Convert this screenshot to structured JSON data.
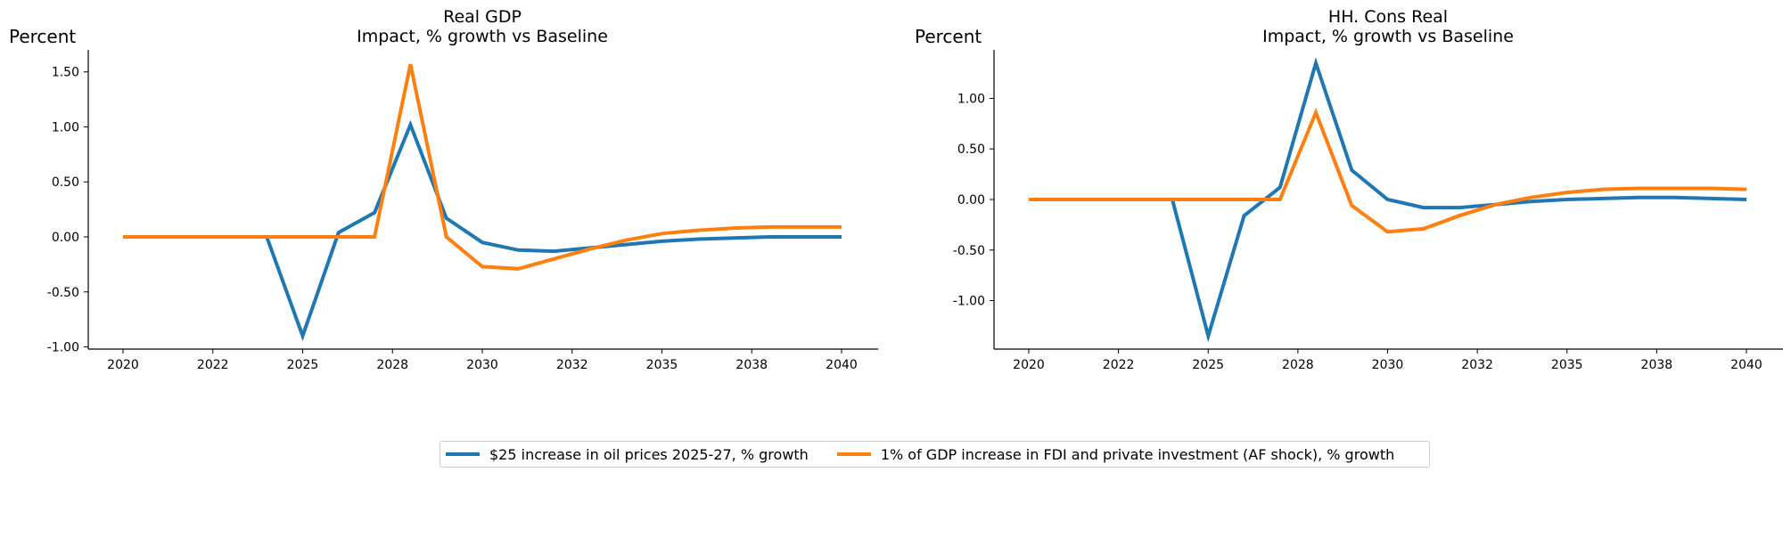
{
  "colors": {
    "series_0": "#1f77b4",
    "series_1": "#ff7f0e"
  },
  "legend": [
    "$25 increase in oil prices 2025-27, % growth",
    "1% of GDP increase in FDI and private investment (AF shock), % growth"
  ],
  "chart_data": [
    {
      "type": "line",
      "title": "Real GDP",
      "subtitle": "Impact, % growth vs Baseline",
      "ylabel": "Percent",
      "xlabel": "",
      "x_range": [
        2020,
        2040
      ],
      "x_ticks": [
        "2020",
        "2022",
        "2025",
        "2028",
        "2030",
        "2032",
        "2035",
        "2038",
        "2040"
      ],
      "y_ticks": [
        "-1.00",
        "-0.50",
        "0.00",
        "0.50",
        "1.00",
        "1.50"
      ],
      "y_tick_values": [
        -1.0,
        -0.5,
        0.0,
        0.5,
        1.0,
        1.5
      ],
      "ylim": [
        -1.02,
        1.7
      ],
      "grid": false,
      "x": [
        2020,
        2021,
        2022,
        2023,
        2024,
        2025,
        2026,
        2027,
        2028,
        2029,
        2030,
        2031,
        2032,
        2033,
        2034,
        2035,
        2036,
        2037,
        2038,
        2039,
        2040
      ],
      "series": [
        {
          "name": "$25 increase in oil prices 2025-27, % growth",
          "values": [
            0,
            0,
            0,
            0,
            0,
            -0.9,
            0.04,
            0.22,
            1.02,
            0.17,
            -0.05,
            -0.12,
            -0.13,
            -0.1,
            -0.07,
            -0.04,
            -0.02,
            -0.01,
            0.0,
            0.0,
            0.0
          ]
        },
        {
          "name": "1% of GDP increase in FDI and private investment (AF shock), % growth",
          "values": [
            0,
            0,
            0,
            0,
            0,
            0,
            0,
            0,
            1.57,
            0.0,
            -0.27,
            -0.29,
            -0.2,
            -0.11,
            -0.03,
            0.03,
            0.06,
            0.08,
            0.09,
            0.09,
            0.09
          ]
        }
      ]
    },
    {
      "type": "line",
      "title": "HH. Cons Real",
      "subtitle": "Impact, % growth vs Baseline",
      "ylabel": "Percent",
      "xlabel": "",
      "x_range": [
        2020,
        2040
      ],
      "x_ticks": [
        "2020",
        "2022",
        "2025",
        "2028",
        "2030",
        "2032",
        "2035",
        "2038",
        "2040"
      ],
      "y_ticks": [
        "-1.00",
        "-0.50",
        "0.00",
        "0.50",
        "1.00"
      ],
      "y_tick_values": [
        -1.0,
        -0.5,
        0.0,
        0.5,
        1.0
      ],
      "ylim": [
        -1.48,
        1.48
      ],
      "grid": false,
      "x": [
        2020,
        2021,
        2022,
        2023,
        2024,
        2025,
        2026,
        2027,
        2028,
        2029,
        2030,
        2031,
        2032,
        2033,
        2034,
        2035,
        2036,
        2037,
        2038,
        2039,
        2040
      ],
      "series": [
        {
          "name": "$25 increase in oil prices 2025-27, % growth",
          "values": [
            0,
            0,
            0,
            0,
            0,
            -1.35,
            -0.16,
            0.12,
            1.35,
            0.29,
            0.0,
            -0.08,
            -0.08,
            -0.05,
            -0.02,
            0.0,
            0.01,
            0.02,
            0.02,
            0.01,
            0.0
          ]
        },
        {
          "name": "1% of GDP increase in FDI and private investment (AF shock), % growth",
          "values": [
            0,
            0,
            0,
            0,
            0,
            0,
            0,
            0,
            0.86,
            -0.06,
            -0.32,
            -0.29,
            -0.16,
            -0.05,
            0.02,
            0.07,
            0.1,
            0.11,
            0.11,
            0.11,
            0.1
          ]
        }
      ]
    }
  ]
}
